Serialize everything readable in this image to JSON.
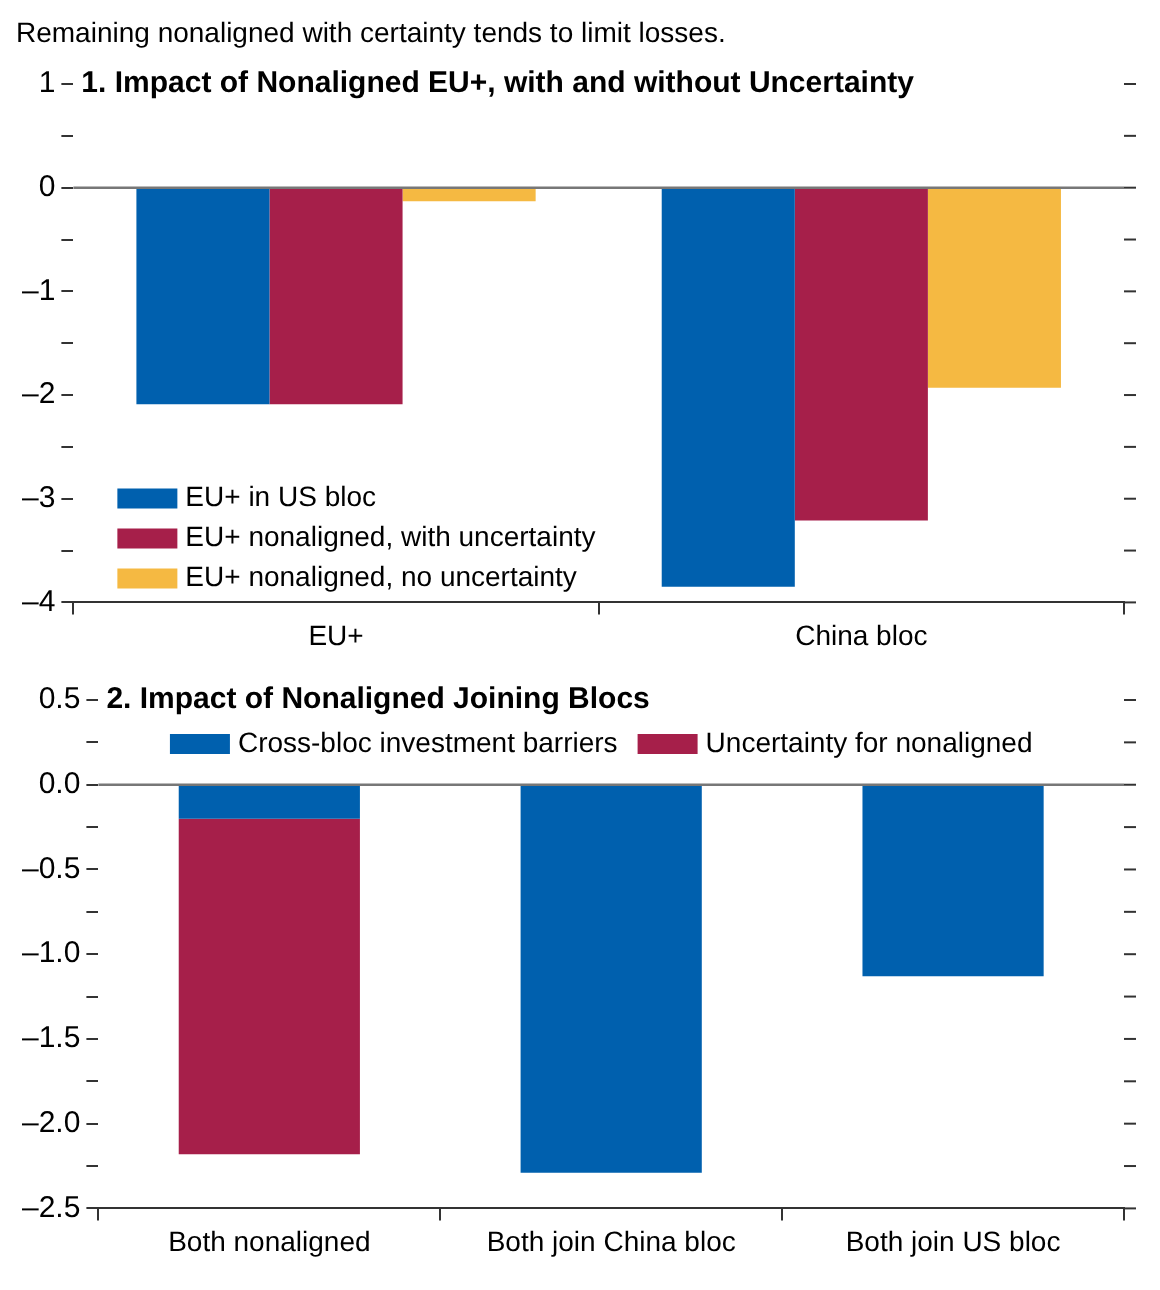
{
  "chart_data": [
    {
      "type": "bar",
      "title": "1. Impact of Nonaligned EU+, with and without Uncertainty",
      "annotations": [
        "Remaining nonaligned with certainty tends to limit losses."
      ],
      "categories": [
        "EU+",
        "China bloc"
      ],
      "series": [
        {
          "name": "EU+ in US bloc",
          "color": "#0060ae",
          "values": [
            -2.09,
            -3.85
          ]
        },
        {
          "name": "EU+ nonaligned, with uncertainty",
          "color": "#a61f4a",
          "values": [
            -2.09,
            -3.21
          ]
        },
        {
          "name": "EU+ nonaligned, no uncertainty",
          "color": "#f5b942",
          "values": [
            -0.13,
            -1.93
          ]
        }
      ],
      "ylim": [
        -4,
        1
      ],
      "yticks": [
        {
          "value": -4,
          "label": "–4"
        },
        {
          "value": -3.5,
          "label": null
        },
        {
          "value": -3,
          "label": "–3"
        },
        {
          "value": -2.5,
          "label": null
        },
        {
          "value": -2,
          "label": "–2"
        },
        {
          "value": -1.5,
          "label": null
        },
        {
          "value": -1,
          "label": "–1"
        },
        {
          "value": -0.5,
          "label": null
        },
        0,
        {
          "value": 0.5,
          "label": null
        },
        1
      ],
      "ref_lines": [
        {
          "axis": "y",
          "value": 0,
          "color": "#777777"
        }
      ],
      "legend": "bottom left"
    },
    {
      "type": "bar",
      "title": "2. Impact of Nonaligned Joining Blocs",
      "categories": [
        "Both nonaligned",
        "Both join China bloc",
        "Both join US bloc"
      ],
      "stacked": true,
      "series": [
        {
          "name": "Cross-bloc investment barriers",
          "color": "#0060ae",
          "values": [
            -0.2,
            -2.29,
            -1.13
          ]
        },
        {
          "name": "Uncertainty for nonaligned",
          "color": "#a61f4a",
          "values": [
            -1.98,
            0,
            0
          ]
        }
      ],
      "ylim": [
        -2.5,
        0.5
      ],
      "yticks": [
        {
          "value": -2.5,
          "label": "–2.5"
        },
        {
          "value": -2.25,
          "label": null
        },
        {
          "value": -2,
          "label": "–2.0"
        },
        {
          "value": -1.75,
          "label": null
        },
        {
          "value": -1.5,
          "label": "–1.5"
        },
        {
          "value": -1.25,
          "label": null
        },
        {
          "value": -1,
          "label": "–1.0"
        },
        {
          "value": -0.75,
          "label": null
        },
        {
          "value": -0.5,
          "label": "–0.5"
        },
        {
          "value": -0.25,
          "label": null
        },
        {
          "value": 0,
          "label": "0.0"
        },
        {
          "value": 0.25,
          "label": null
        },
        0.5
      ],
      "ref_lines": [
        {
          "axis": "y",
          "value": 0,
          "color": "#777777"
        }
      ],
      "legend": "top"
    }
  ]
}
